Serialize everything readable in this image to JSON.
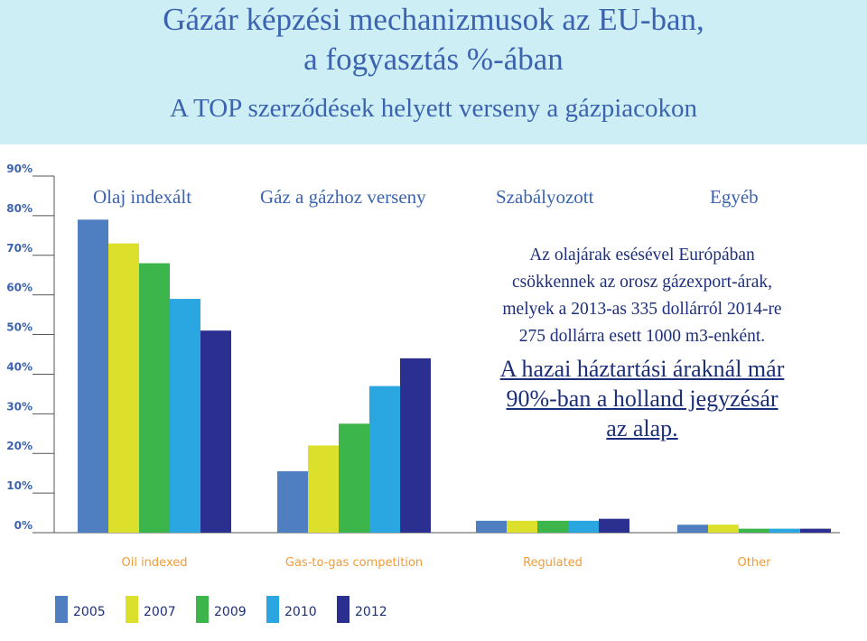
{
  "header": {
    "title_line1": "Gázár képzési mechanizmusok az EU-ban,",
    "title_line2": "a fogyasztás %-ában",
    "subtitle": "A TOP szerződések helyett verseny a gázpiacokon"
  },
  "category_headings": [
    "Olaj indexált",
    "Gáz a gázhoz verseny",
    "Szabályozott",
    "Egyéb"
  ],
  "note": {
    "line1": "Az olajárak esésével Európában",
    "line2": "csökkennek az orosz gázexport-árak,",
    "line3": "melyek a 2013-as 335 dollárról 2014-re",
    "line4": "275 dollárra esett 1000 m3-enként.",
    "highlight1": "A hazai háztartási áraknál már",
    "highlight2": "90%-ban a holland jegyzésár",
    "highlight3": "az alap."
  },
  "colors": {
    "header_bg": "#cdeef4",
    "title": "#3b63b0",
    "note_text": "#1d2f7a",
    "tick_label": "#3b63b0",
    "category_label": "#f29b38"
  },
  "chart_data": {
    "type": "bar",
    "categories": [
      "Oil indexed",
      "Gas-to-gas competition",
      "Regulated",
      "Other"
    ],
    "series": [
      {
        "name": "2005",
        "color": "#4f7fc1",
        "values": [
          79,
          15.5,
          3,
          2
        ]
      },
      {
        "name": "2007",
        "color": "#dde02a",
        "values": [
          73,
          22,
          3,
          2
        ]
      },
      {
        "name": "2009",
        "color": "#3cb54a",
        "values": [
          68,
          27.5,
          3,
          1
        ]
      },
      {
        "name": "2010",
        "color": "#2aa6e0",
        "values": [
          59,
          37,
          3,
          1
        ]
      },
      {
        "name": "2012",
        "color": "#2b2f8f",
        "values": [
          51,
          44,
          3.5,
          1
        ]
      }
    ],
    "yticks": [
      "0%",
      "10%",
      "20%",
      "30%",
      "40%",
      "50%",
      "60%",
      "70%",
      "80%",
      "90%"
    ],
    "ylim": [
      0,
      90
    ],
    "grid": false,
    "legend_position": "bottom"
  }
}
